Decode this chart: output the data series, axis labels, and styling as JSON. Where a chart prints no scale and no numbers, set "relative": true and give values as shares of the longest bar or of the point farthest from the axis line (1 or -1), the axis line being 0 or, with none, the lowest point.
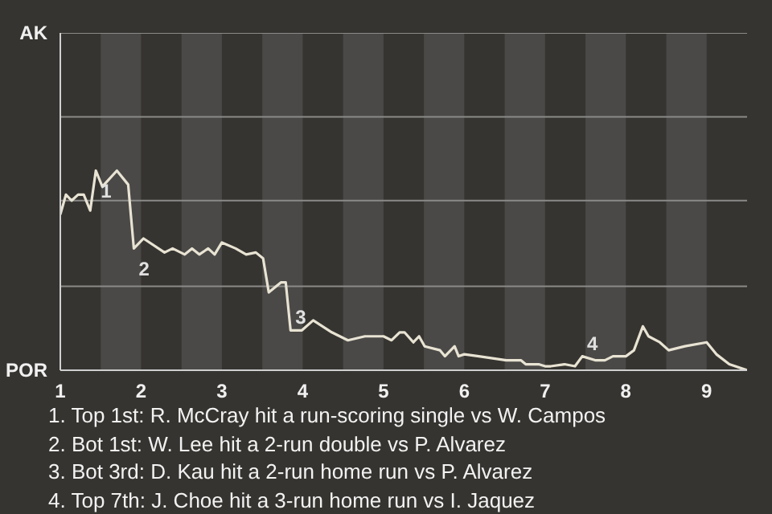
{
  "chart_data": {
    "type": "line",
    "relative": true,
    "xlim": [
      1,
      9.5
    ],
    "xticks": [
      1,
      2,
      3,
      4,
      5,
      6,
      7,
      8,
      9
    ],
    "ref_lines": [
      {
        "axis": "y",
        "value": 0.42,
        "color": "#8a8a88"
      },
      {
        "axis": "y",
        "value": 0.85,
        "color": "#8a8a88"
      },
      {
        "axis": "y",
        "value": 1.27,
        "color": "#8a8a88"
      },
      {
        "axis": "y",
        "value": 1.69,
        "color": "#8a8a88"
      }
    ],
    "bands": [
      {
        "axis": "x",
        "from": 1.5,
        "to": 2,
        "color": "#4a4947"
      },
      {
        "axis": "x",
        "from": 2.5,
        "to": 3,
        "color": "#4a4947"
      },
      {
        "axis": "x",
        "from": 3.5,
        "to": 4,
        "color": "#4a4947"
      },
      {
        "axis": "x",
        "from": 4.5,
        "to": 5,
        "color": "#4a4947"
      },
      {
        "axis": "x",
        "from": 5.5,
        "to": 6,
        "color": "#4a4947"
      },
      {
        "axis": "x",
        "from": 6.5,
        "to": 7,
        "color": "#4a4947"
      },
      {
        "axis": "x",
        "from": 7.5,
        "to": 8,
        "color": "#4a4947"
      },
      {
        "axis": "x",
        "from": 8.5,
        "to": 9,
        "color": "#4a4947"
      }
    ],
    "series": [
      {
        "color": "#e8e3d3",
        "x": [
          1,
          1.07,
          1.14,
          1.22,
          1.29,
          1.37,
          1.44,
          1.52,
          1.7,
          1.84,
          1.91,
          2.03,
          2.29,
          2.39,
          2.54,
          2.63,
          2.72,
          2.83,
          2.91,
          3,
          3.17,
          3.3,
          3.42,
          3.51,
          3.58,
          3.73,
          3.79,
          3.85,
          3.99,
          4.13,
          4.36,
          4.56,
          4.77,
          5,
          5.1,
          5.2,
          5.26,
          5.37,
          5.44,
          5.51,
          5.7,
          5.76,
          5.88,
          5.93,
          6,
          6.18,
          6.52,
          6.7,
          6.76,
          6.92,
          7,
          7.07,
          7.24,
          7.37,
          7.46,
          7.62,
          7.74,
          7.84,
          8,
          8.1,
          8.21,
          8.28,
          8.42,
          8.53,
          8.73,
          9,
          9.12,
          9.28,
          9.5
        ],
        "values": [
          0.78,
          0.88,
          0.85,
          0.88,
          0.88,
          0.8,
          1,
          0.92,
          1,
          0.93,
          0.61,
          0.66,
          0.59,
          0.61,
          0.58,
          0.61,
          0.58,
          0.61,
          0.58,
          0.64,
          0.61,
          0.58,
          0.59,
          0.56,
          0.39,
          0.44,
          0.44,
          0.2,
          0.2,
          0.25,
          0.19,
          0.15,
          0.17,
          0.17,
          0.15,
          0.19,
          0.19,
          0.14,
          0.17,
          0.12,
          0.1,
          0.07,
          0.12,
          0.07,
          0.08,
          0.07,
          0.05,
          0.05,
          0.03,
          0.03,
          0.02,
          0.02,
          0.03,
          0.02,
          0.07,
          0.05,
          0.05,
          0.07,
          0.07,
          0.1,
          0.22,
          0.17,
          0.14,
          0.1,
          0.12,
          0.14,
          0.08,
          0.03,
          0
        ]
      }
    ],
    "annotations": [
      "AK",
      "POR",
      {
        "text": "1",
        "x": 1.44,
        "y": 1
      },
      {
        "text": "2",
        "x": 1.91,
        "y": 0.61
      },
      {
        "text": "3",
        "x": 3.85,
        "y": 0.2
      },
      {
        "text": "4",
        "x": 7.46,
        "y": 0.07
      },
      "1. Top 1st: R. McCray hit a run-scoring single vs W. Campos",
      "2. Bot 1st: W. Lee hit a 2-run double vs P. Alvarez",
      "3. Bot 3rd: D. Kau hit a 2-run home run vs P. Alvarez",
      "4. Top 7th: J. Choe hit a 3-run home run vs I. Jaquez"
    ]
  }
}
